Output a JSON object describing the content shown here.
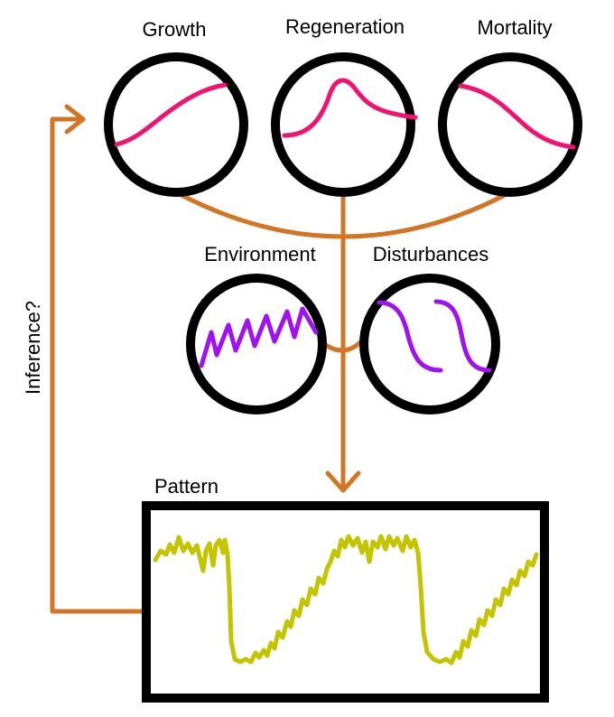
{
  "labels": {
    "growth": "Growth",
    "regeneration": "Regeneration",
    "mortality": "Mortality",
    "environment": "Environment",
    "disturbances": "Disturbances",
    "pattern": "Pattern",
    "inference": "Inference?"
  },
  "colors": {
    "process_curve": "#f2126f",
    "driver_curve": "#a012f2",
    "pattern_series": "#c4c400",
    "flow_arrow": "#d47524",
    "outline": "#000000"
  }
}
